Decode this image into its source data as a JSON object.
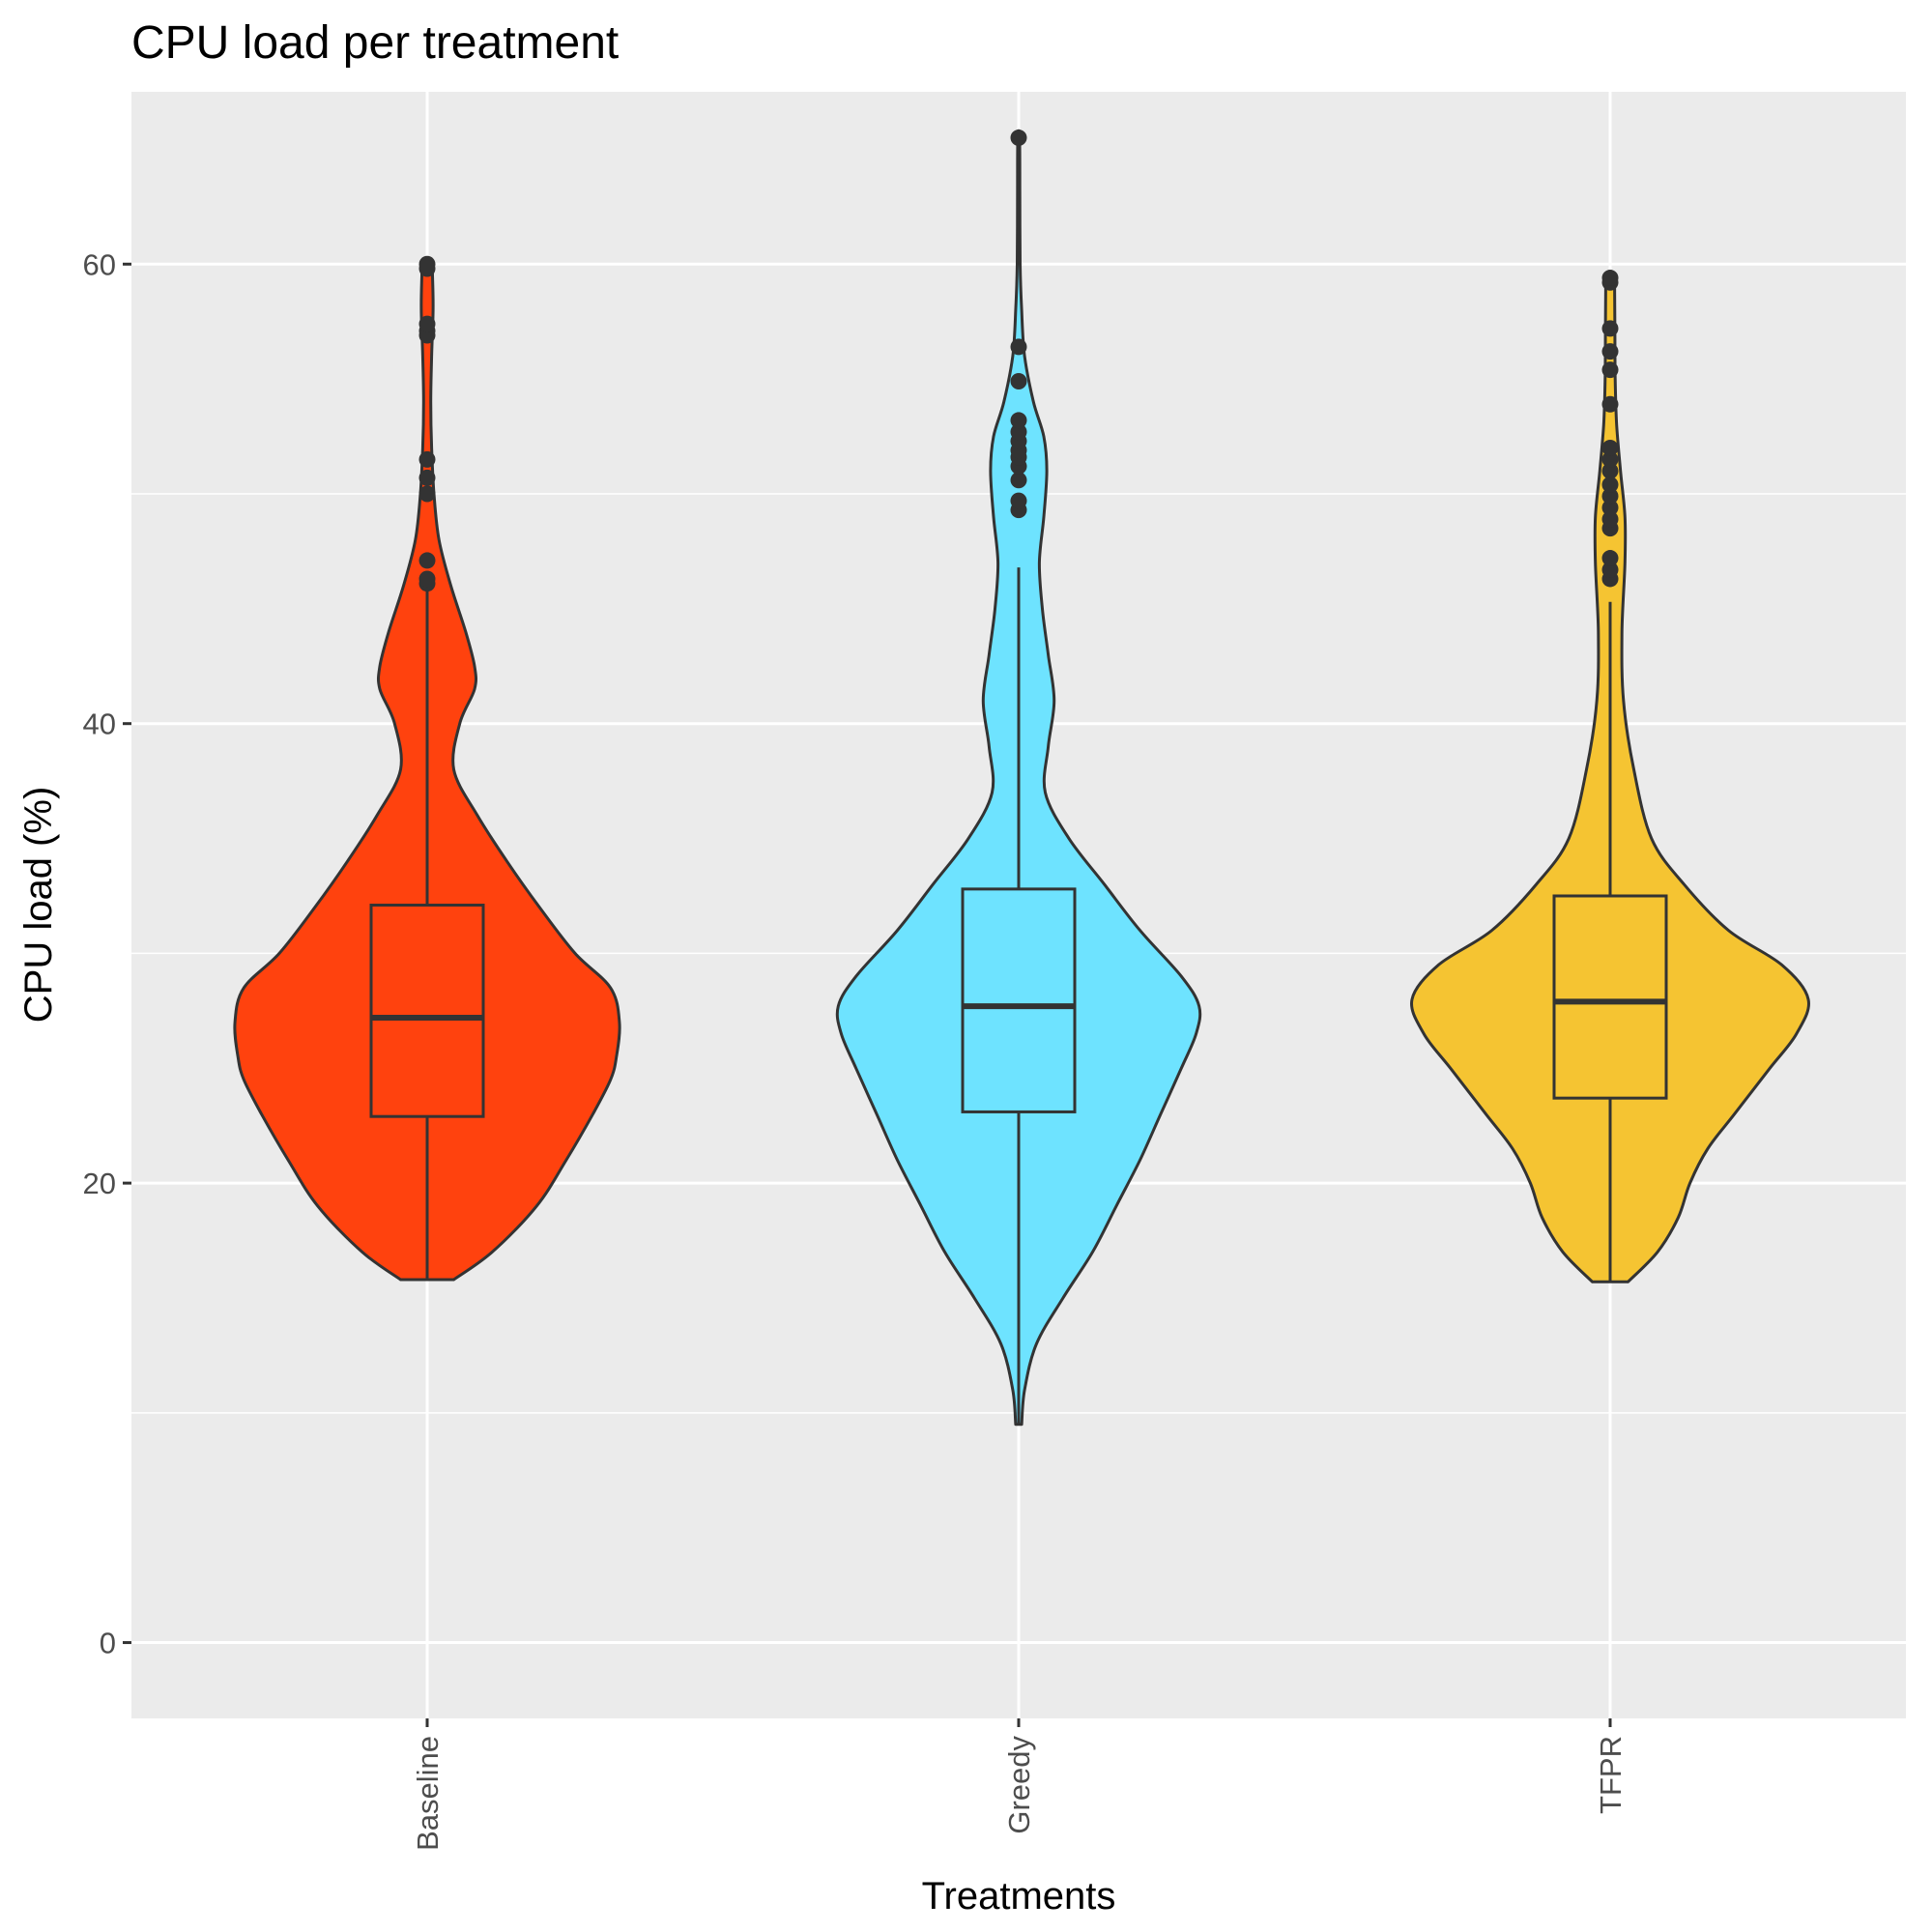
{
  "chart_data": {
    "type": "violin",
    "title": "CPU load per treatment",
    "xlabel": "Treatments",
    "ylabel": "CPU load (%)",
    "ylim": [
      -3.3,
      67.5
    ],
    "y_ticks": [
      0,
      20,
      40,
      60
    ],
    "y_minor_ticks": [
      10,
      30,
      50
    ],
    "grid": true,
    "legend": "none",
    "panel_color": "#ebebeb",
    "outline_color": "#333333",
    "categories": [
      "Baseline",
      "Greedy",
      "TFPR"
    ],
    "series": [
      {
        "category": "Baseline",
        "color": "#ff420e",
        "box": {
          "min": 15.8,
          "q1": 22.9,
          "median": 27.2,
          "q3": 32.1,
          "max": 46.0
        },
        "outliers": [
          46.1,
          46.3,
          47.1,
          50.0,
          50.7,
          51.5,
          56.9,
          57.1,
          57.4,
          59.8,
          60.0
        ],
        "violin": [
          {
            "y": 15.8,
            "w": 0.09
          },
          {
            "y": 17.0,
            "w": 0.22
          },
          {
            "y": 19.0,
            "w": 0.37
          },
          {
            "y": 21.0,
            "w": 0.47
          },
          {
            "y": 23.0,
            "w": 0.56
          },
          {
            "y": 24.5,
            "w": 0.62
          },
          {
            "y": 25.5,
            "w": 0.64
          },
          {
            "y": 27.0,
            "w": 0.65
          },
          {
            "y": 28.5,
            "w": 0.62
          },
          {
            "y": 30.0,
            "w": 0.5
          },
          {
            "y": 32.0,
            "w": 0.38
          },
          {
            "y": 34.0,
            "w": 0.27
          },
          {
            "y": 36.0,
            "w": 0.17
          },
          {
            "y": 38.0,
            "w": 0.09
          },
          {
            "y": 40.0,
            "w": 0.11
          },
          {
            "y": 41.5,
            "w": 0.16
          },
          {
            "y": 42.5,
            "w": 0.16
          },
          {
            "y": 44.0,
            "w": 0.13
          },
          {
            "y": 46.0,
            "w": 0.08
          },
          {
            "y": 48.0,
            "w": 0.04
          },
          {
            "y": 50.0,
            "w": 0.023
          },
          {
            "y": 52.0,
            "w": 0.015
          },
          {
            "y": 54.0,
            "w": 0.012
          },
          {
            "y": 56.0,
            "w": 0.015
          },
          {
            "y": 58.0,
            "w": 0.02
          },
          {
            "y": 59.5,
            "w": 0.018
          },
          {
            "y": 60.0,
            "w": 0.016
          }
        ]
      },
      {
        "category": "Greedy",
        "color": "#6ee3ff",
        "box": {
          "min": 9.5,
          "q1": 23.1,
          "median": 27.7,
          "q3": 32.8,
          "max": 46.8
        },
        "outliers": [
          49.3,
          49.7,
          50.6,
          51.2,
          51.6,
          51.9,
          52.3,
          52.7,
          53.2,
          54.9,
          56.4,
          65.5
        ],
        "violin": [
          {
            "y": 9.5,
            "w": 0.01
          },
          {
            "y": 11.0,
            "w": 0.02
          },
          {
            "y": 13.0,
            "w": 0.06
          },
          {
            "y": 15.0,
            "w": 0.15
          },
          {
            "y": 17.0,
            "w": 0.25
          },
          {
            "y": 19.0,
            "w": 0.33
          },
          {
            "y": 21.0,
            "w": 0.41
          },
          {
            "y": 23.0,
            "w": 0.48
          },
          {
            "y": 25.0,
            "w": 0.55
          },
          {
            "y": 26.5,
            "w": 0.6
          },
          {
            "y": 27.7,
            "w": 0.61
          },
          {
            "y": 29.0,
            "w": 0.55
          },
          {
            "y": 31.0,
            "w": 0.41
          },
          {
            "y": 33.0,
            "w": 0.29
          },
          {
            "y": 35.0,
            "w": 0.17
          },
          {
            "y": 37.0,
            "w": 0.09
          },
          {
            "y": 39.0,
            "w": 0.1
          },
          {
            "y": 41.0,
            "w": 0.12
          },
          {
            "y": 43.0,
            "w": 0.1
          },
          {
            "y": 45.0,
            "w": 0.08
          },
          {
            "y": 47.0,
            "w": 0.07
          },
          {
            "y": 49.0,
            "w": 0.085
          },
          {
            "y": 51.0,
            "w": 0.095
          },
          {
            "y": 52.5,
            "w": 0.085
          },
          {
            "y": 54.0,
            "w": 0.05
          },
          {
            "y": 56.0,
            "w": 0.02
          },
          {
            "y": 58.0,
            "w": 0.01
          },
          {
            "y": 60.0,
            "w": 0.005
          },
          {
            "y": 63.0,
            "w": 0.004
          },
          {
            "y": 65.5,
            "w": 0.003
          }
        ]
      },
      {
        "category": "TFPR",
        "color": "#f5c432",
        "box": {
          "min": 15.7,
          "q1": 23.7,
          "median": 27.9,
          "q3": 32.5,
          "max": 45.3
        },
        "outliers": [
          46.3,
          46.7,
          47.2,
          48.5,
          48.9,
          49.4,
          49.9,
          50.4,
          51.0,
          51.5,
          52.0,
          53.9,
          55.4,
          56.2,
          57.2,
          59.2,
          59.4
        ],
        "violin": [
          {
            "y": 15.7,
            "w": 0.06
          },
          {
            "y": 17.0,
            "w": 0.16
          },
          {
            "y": 18.5,
            "w": 0.23
          },
          {
            "y": 20.0,
            "w": 0.27
          },
          {
            "y": 21.5,
            "w": 0.33
          },
          {
            "y": 23.0,
            "w": 0.42
          },
          {
            "y": 25.0,
            "w": 0.54
          },
          {
            "y": 26.5,
            "w": 0.63
          },
          {
            "y": 28.0,
            "w": 0.67
          },
          {
            "y": 29.5,
            "w": 0.58
          },
          {
            "y": 31.0,
            "w": 0.4
          },
          {
            "y": 33.0,
            "w": 0.25
          },
          {
            "y": 35.0,
            "w": 0.14
          },
          {
            "y": 38.0,
            "w": 0.08
          },
          {
            "y": 41.0,
            "w": 0.045
          },
          {
            "y": 44.0,
            "w": 0.04
          },
          {
            "y": 47.0,
            "w": 0.05
          },
          {
            "y": 49.0,
            "w": 0.05
          },
          {
            "y": 51.0,
            "w": 0.035
          },
          {
            "y": 53.0,
            "w": 0.022
          },
          {
            "y": 55.0,
            "w": 0.017
          },
          {
            "y": 57.0,
            "w": 0.016
          },
          {
            "y": 59.0,
            "w": 0.015
          },
          {
            "y": 59.4,
            "w": 0.013
          }
        ]
      }
    ]
  }
}
